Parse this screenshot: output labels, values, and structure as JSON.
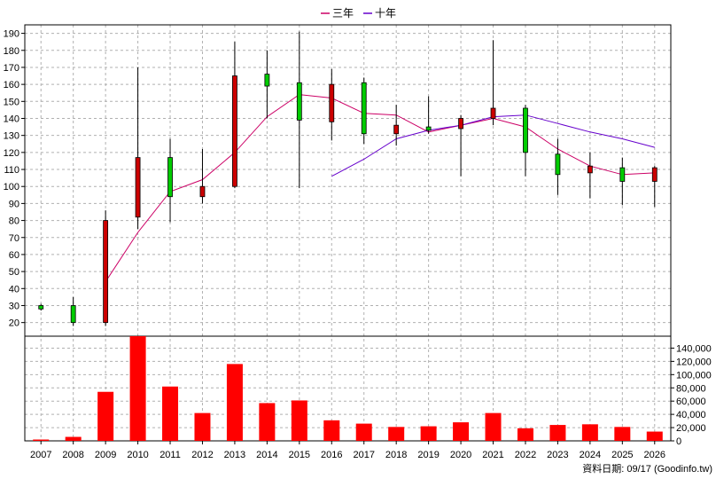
{
  "chart_data": {
    "type": "candlestick",
    "legend": [
      {
        "name": "三年",
        "color": "#cc0066"
      },
      {
        "name": "十年",
        "color": "#6600cc"
      }
    ],
    "categories": [
      "2007",
      "2008",
      "2009",
      "2010",
      "2011",
      "2012",
      "2013",
      "2014",
      "2015",
      "2016",
      "2017",
      "2018",
      "2019",
      "2020",
      "2021",
      "2022",
      "2023",
      "2024",
      "2025",
      "2026"
    ],
    "price_axis": {
      "ticks": [
        20,
        30,
        40,
        50,
        60,
        70,
        80,
        90,
        100,
        110,
        120,
        130,
        140,
        150,
        160,
        170,
        180,
        190
      ],
      "ylim": [
        12,
        195
      ]
    },
    "volume_axis": {
      "tick_labels": [
        "0",
        "20,000",
        "40,000",
        "60,000",
        "80,000",
        "100,000",
        "120,000",
        "140,000"
      ],
      "ticks": [
        0,
        20000,
        40000,
        60000,
        80000,
        100000,
        120000,
        140000
      ],
      "ylim": [
        0,
        158000
      ]
    },
    "candles": [
      {
        "open": 28,
        "close": 30,
        "high": 31,
        "low": 27
      },
      {
        "open": 20,
        "close": 30,
        "high": 35,
        "low": 18
      },
      {
        "open": 80,
        "close": 20,
        "high": 86,
        "low": 18
      },
      {
        "open": 117,
        "close": 82,
        "high": 170,
        "low": 75
      },
      {
        "open": 94,
        "close": 117,
        "high": 128,
        "low": 79
      },
      {
        "open": 100,
        "close": 94,
        "high": 122,
        "low": 90
      },
      {
        "open": 165,
        "close": 100,
        "high": 185,
        "low": 99
      },
      {
        "open": 159,
        "close": 166,
        "high": 180,
        "low": 140
      },
      {
        "open": 139,
        "close": 161,
        "high": 191,
        "low": 99
      },
      {
        "open": 160,
        "close": 138,
        "high": 169,
        "low": 127
      },
      {
        "open": 131,
        "close": 161,
        "high": 164,
        "low": 125
      },
      {
        "open": 136,
        "close": 131,
        "high": 148,
        "low": 124
      },
      {
        "open": 133,
        "close": 135,
        "high": 153,
        "low": 131
      },
      {
        "open": 140,
        "close": 134,
        "high": 142,
        "low": 106
      },
      {
        "open": 146,
        "close": 140,
        "high": 186,
        "low": 136
      },
      {
        "open": 120,
        "close": 146,
        "high": 148,
        "low": 106
      },
      {
        "open": 107,
        "close": 119,
        "high": 128,
        "low": 95
      },
      {
        "open": 112,
        "close": 108,
        "high": 120,
        "low": 93
      },
      {
        "open": 103,
        "close": 111,
        "high": 117,
        "low": 89
      },
      {
        "open": 111,
        "close": 103,
        "high": 112,
        "low": 88
      }
    ],
    "ma3": [
      null,
      null,
      44,
      73,
      97,
      104,
      120,
      141,
      154,
      152,
      143,
      142,
      132,
      136,
      140,
      135,
      122,
      112,
      107,
      108
    ],
    "ma10": [
      null,
      null,
      null,
      null,
      null,
      null,
      null,
      null,
      null,
      106,
      116,
      128,
      133,
      136,
      141,
      142,
      137,
      132,
      128,
      123
    ],
    "volume": [
      2000,
      6000,
      74000,
      158000,
      82000,
      42000,
      116000,
      57000,
      61000,
      31000,
      26000,
      21000,
      22000,
      28000,
      42000,
      19000,
      24000,
      25000,
      21000,
      14000
    ]
  },
  "footer": {
    "text": "資料日期: 09/17  (Goodinfo.tw)"
  }
}
